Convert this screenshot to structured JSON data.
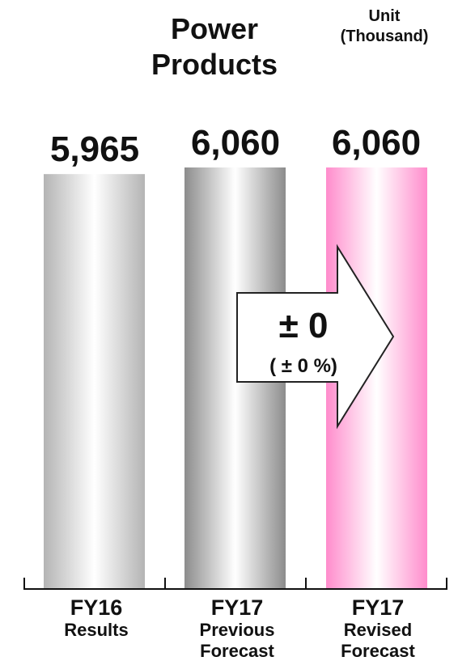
{
  "chart_data": {
    "type": "bar",
    "title": "Power Products",
    "unit_label": "Unit (Thousand)",
    "categories": [
      {
        "line1": "FY16",
        "line2": "Results",
        "line3": ""
      },
      {
        "line1": "FY17",
        "line2": "Previous",
        "line3": "Forecast"
      },
      {
        "line1": "FY17",
        "line2": "Revised",
        "line3": "Forecast"
      }
    ],
    "values": [
      5965,
      6060,
      6060
    ],
    "value_labels": [
      "5,965",
      "6,060",
      "6,060"
    ],
    "bar_colors": [
      [
        "#b4b4b4",
        "#ffffff",
        "#b4b4b4"
      ],
      [
        "#8c8c8c",
        "#ffffff",
        "#8c8c8c"
      ],
      [
        "#ff8ccc",
        "#ffffff",
        "#ff8ccc"
      ]
    ],
    "change": {
      "value": "± 0",
      "percent": "( ± 0 %)"
    }
  }
}
